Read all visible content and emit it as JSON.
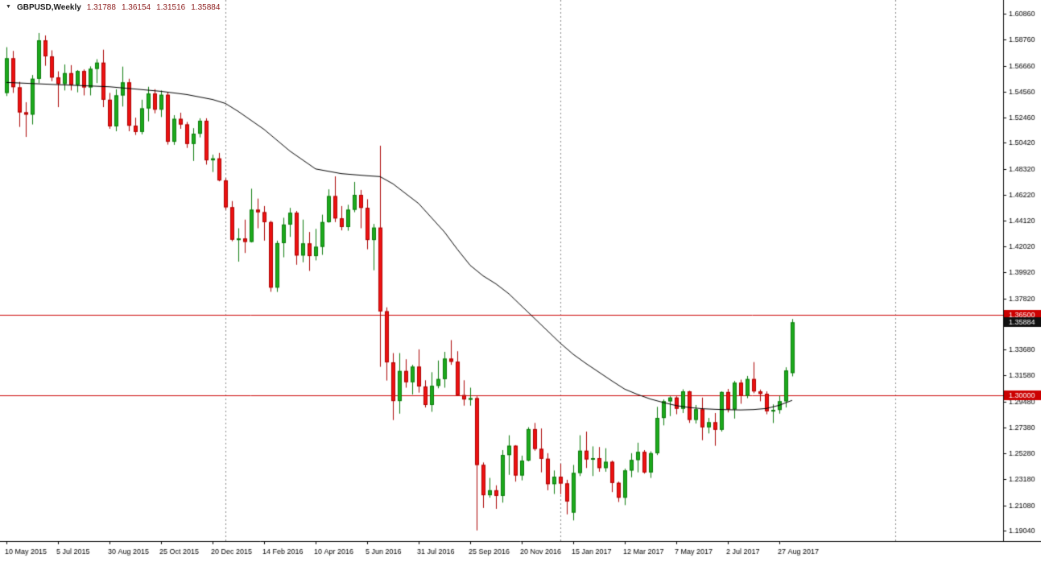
{
  "header": {
    "menu_arrow_icon": "▼",
    "symbol": "GBPUSD,Weekly",
    "open": "1.31788",
    "high": "1.36154",
    "low": "1.31516",
    "close": "1.35884"
  },
  "chart_data": {
    "type": "candlestick",
    "symbol": "GBPUSD",
    "timeframe": "Weekly",
    "ylim": [
      1.1819,
      1.6197
    ],
    "colors": {
      "bg": "#ffffff",
      "up_fill": "#1cab1c",
      "up_border": "#0a7a0a",
      "down_fill": "#ee1111",
      "down_border": "#aa0000",
      "ma": "#000000",
      "hline": "#cc0000",
      "separator": "#888888",
      "axis_text": "#000000",
      "tag_current_bg": "#111111",
      "tag_line_bg": "#cc0000",
      "tag_text": "#ffffff"
    },
    "y_ticks": [
      {
        "value": 1.6086,
        "label": "1.60860"
      },
      {
        "value": 1.5876,
        "label": "1.58760"
      },
      {
        "value": 1.5666,
        "label": "1.56660"
      },
      {
        "value": 1.5456,
        "label": "1.54560"
      },
      {
        "value": 1.5246,
        "label": "1.52460"
      },
      {
        "value": 1.5042,
        "label": "1.50420"
      },
      {
        "value": 1.4832,
        "label": "1.48320"
      },
      {
        "value": 1.4622,
        "label": "1.46220"
      },
      {
        "value": 1.4412,
        "label": "1.44120"
      },
      {
        "value": 1.4202,
        "label": "1.42020"
      },
      {
        "value": 1.3992,
        "label": "1.39920"
      },
      {
        "value": 1.3782,
        "label": "1.37820"
      },
      {
        "value": 1.3572,
        "label": "1.35720"
      },
      {
        "value": 1.3368,
        "label": "1.33680"
      },
      {
        "value": 1.3158,
        "label": "1.31580"
      },
      {
        "value": 1.2948,
        "label": "1.29480"
      },
      {
        "value": 1.2738,
        "label": "1.27380"
      },
      {
        "value": 1.2528,
        "label": "1.25280"
      },
      {
        "value": 1.2318,
        "label": "1.23180"
      },
      {
        "value": 1.2108,
        "label": "1.21080"
      },
      {
        "value": 1.1904,
        "label": "1.19040"
      }
    ],
    "x_ticks": [
      {
        "index": 0,
        "label": "10 May 2015"
      },
      {
        "index": 8,
        "label": "5 Jul 2015"
      },
      {
        "index": 16,
        "label": "30 Aug 2015"
      },
      {
        "index": 24,
        "label": "25 Oct 2015"
      },
      {
        "index": 32,
        "label": "20 Dec 2015"
      },
      {
        "index": 40,
        "label": "14 Feb 2016"
      },
      {
        "index": 48,
        "label": "10 Apr 2016"
      },
      {
        "index": 56,
        "label": "5 Jun 2016"
      },
      {
        "index": 64,
        "label": "31 Jul 2016"
      },
      {
        "index": 72,
        "label": "25 Sep 2016"
      },
      {
        "index": 80,
        "label": "20 Nov 2016"
      },
      {
        "index": 88,
        "label": "15 Jan 2017"
      },
      {
        "index": 96,
        "label": "12 Mar 2017"
      },
      {
        "index": 104,
        "label": "7 May 2017"
      },
      {
        "index": 112,
        "label": "2 Jul 2017"
      },
      {
        "index": 120,
        "label": "27 Aug 2017"
      }
    ],
    "separators_index": [
      34,
      86,
      138
    ],
    "hlines": [
      {
        "value": 1.365,
        "label": "1.36500"
      },
      {
        "value": 1.3,
        "label": "1.30000"
      }
    ],
    "price_tag": {
      "value": 1.35884,
      "label": "1.35884"
    },
    "candles": [
      [
        1.5445,
        1.5815,
        1.542,
        1.5725
      ],
      [
        1.5725,
        1.5785,
        1.5445,
        1.5492
      ],
      [
        1.549,
        1.5535,
        1.517,
        1.5288
      ],
      [
        1.5288,
        1.537,
        1.5089,
        1.527
      ],
      [
        1.527,
        1.559,
        1.519,
        1.556
      ],
      [
        1.556,
        1.593,
        1.5525,
        1.587
      ],
      [
        1.587,
        1.591,
        1.5665,
        1.5741
      ],
      [
        1.5741,
        1.579,
        1.554,
        1.557
      ],
      [
        1.557,
        1.562,
        1.533,
        1.5518
      ],
      [
        1.5518,
        1.5675,
        1.5465,
        1.5605
      ],
      [
        1.5605,
        1.567,
        1.5465,
        1.551
      ],
      [
        1.551,
        1.563,
        1.545,
        1.5622
      ],
      [
        1.5622,
        1.5635,
        1.5425,
        1.549
      ],
      [
        1.549,
        1.566,
        1.5425,
        1.564
      ],
      [
        1.564,
        1.5718,
        1.5525,
        1.569
      ],
      [
        1.569,
        1.5795,
        1.533,
        1.539
      ],
      [
        1.539,
        1.5445,
        1.5155,
        1.5175
      ],
      [
        1.5175,
        1.5475,
        1.5135,
        1.5425
      ],
      [
        1.5425,
        1.5658,
        1.5335,
        1.553
      ],
      [
        1.553,
        1.556,
        1.5135,
        1.518
      ],
      [
        1.518,
        1.5245,
        1.5105,
        1.513
      ],
      [
        1.513,
        1.539,
        1.511,
        1.532
      ],
      [
        1.532,
        1.5495,
        1.5215,
        1.544
      ],
      [
        1.544,
        1.5475,
        1.528,
        1.531
      ],
      [
        1.531,
        1.5465,
        1.525,
        1.543
      ],
      [
        1.543,
        1.545,
        1.5027,
        1.505
      ],
      [
        1.505,
        1.5265,
        1.5025,
        1.5235
      ],
      [
        1.5235,
        1.5285,
        1.5155,
        1.519
      ],
      [
        1.519,
        1.521,
        1.5,
        1.5033
      ],
      [
        1.5033,
        1.516,
        1.4895,
        1.5115
      ],
      [
        1.5115,
        1.524,
        1.5085,
        1.522
      ],
      [
        1.522,
        1.524,
        1.4865,
        1.49
      ],
      [
        1.49,
        1.4945,
        1.4805,
        1.4915
      ],
      [
        1.4915,
        1.496,
        1.473,
        1.4737
      ],
      [
        1.4737,
        1.4755,
        1.45,
        1.452
      ],
      [
        1.452,
        1.457,
        1.4245,
        1.4258
      ],
      [
        1.4258,
        1.435,
        1.408,
        1.4267
      ],
      [
        1.4267,
        1.442,
        1.415,
        1.424
      ],
      [
        1.424,
        1.467,
        1.4235,
        1.45
      ],
      [
        1.45,
        1.459,
        1.435,
        1.448
      ],
      [
        1.448,
        1.453,
        1.425,
        1.44
      ],
      [
        1.44,
        1.441,
        1.3836,
        1.387
      ],
      [
        1.387,
        1.425,
        1.3835,
        1.423
      ],
      [
        1.423,
        1.4435,
        1.4115,
        1.438
      ],
      [
        1.438,
        1.4515,
        1.428,
        1.4475
      ],
      [
        1.4475,
        1.449,
        1.4055,
        1.413
      ],
      [
        1.413,
        1.442,
        1.4075,
        1.4227
      ],
      [
        1.4227,
        1.432,
        1.4005,
        1.4125
      ],
      [
        1.4125,
        1.4345,
        1.409,
        1.42
      ],
      [
        1.42,
        1.446,
        1.4135,
        1.44
      ],
      [
        1.44,
        1.4665,
        1.4395,
        1.461
      ],
      [
        1.461,
        1.477,
        1.44,
        1.443
      ],
      [
        1.443,
        1.453,
        1.4333,
        1.436
      ],
      [
        1.436,
        1.454,
        1.433,
        1.45
      ],
      [
        1.45,
        1.4725,
        1.448,
        1.462
      ],
      [
        1.462,
        1.466,
        1.435,
        1.4515
      ],
      [
        1.4515,
        1.4585,
        1.418,
        1.4255
      ],
      [
        1.4255,
        1.4385,
        1.401,
        1.4355
      ],
      [
        1.4355,
        1.5018,
        1.3229,
        1.3678
      ],
      [
        1.3678,
        1.371,
        1.3118,
        1.3265
      ],
      [
        1.3265,
        1.334,
        1.2798,
        1.2952
      ],
      [
        1.2952,
        1.334,
        1.285,
        1.3195
      ],
      [
        1.3195,
        1.329,
        1.306,
        1.3105
      ],
      [
        1.3105,
        1.3245,
        1.3005,
        1.323
      ],
      [
        1.323,
        1.337,
        1.302,
        1.307
      ],
      [
        1.307,
        1.312,
        1.29,
        1.292
      ],
      [
        1.292,
        1.3185,
        1.2865,
        1.3075
      ],
      [
        1.3075,
        1.328,
        1.3055,
        1.313
      ],
      [
        1.313,
        1.335,
        1.306,
        1.3295
      ],
      [
        1.3295,
        1.3445,
        1.3245,
        1.327
      ],
      [
        1.327,
        1.3355,
        1.2995,
        1.3
      ],
      [
        1.3,
        1.312,
        1.2915,
        1.2965
      ],
      [
        1.2965,
        1.306,
        1.2915,
        1.2975
      ],
      [
        1.2975,
        1.299,
        1.1905,
        1.2435
      ],
      [
        1.2435,
        1.2455,
        1.2087,
        1.219
      ],
      [
        1.219,
        1.233,
        1.217,
        1.223
      ],
      [
        1.223,
        1.227,
        1.208,
        1.2185
      ],
      [
        1.2185,
        1.2555,
        1.213,
        1.2515
      ],
      [
        1.2515,
        1.2675,
        1.2355,
        1.259
      ],
      [
        1.259,
        1.2595,
        1.23,
        1.235
      ],
      [
        1.235,
        1.251,
        1.231,
        1.247
      ],
      [
        1.247,
        1.274,
        1.2465,
        1.2725
      ],
      [
        1.2725,
        1.2775,
        1.255,
        1.2565
      ],
      [
        1.2565,
        1.273,
        1.2375,
        1.2485
      ],
      [
        1.2485,
        1.253,
        1.223,
        1.228
      ],
      [
        1.228,
        1.239,
        1.22,
        1.234
      ],
      [
        1.234,
        1.2445,
        1.2198,
        1.2285
      ],
      [
        1.2285,
        1.2315,
        1.2035,
        1.214
      ],
      [
        1.205,
        1.2435,
        1.1986,
        1.237
      ],
      [
        1.237,
        1.2675,
        1.2345,
        1.255
      ],
      [
        1.255,
        1.2705,
        1.241,
        1.248
      ],
      [
        1.248,
        1.2585,
        1.2345,
        1.249
      ],
      [
        1.249,
        1.258,
        1.238,
        1.241
      ],
      [
        1.241,
        1.257,
        1.238,
        1.246
      ],
      [
        1.246,
        1.247,
        1.2215,
        1.229
      ],
      [
        1.229,
        1.23,
        1.2135,
        1.217
      ],
      [
        1.217,
        1.2405,
        1.211,
        1.239
      ],
      [
        1.239,
        1.253,
        1.2335,
        1.2475
      ],
      [
        1.2475,
        1.2615,
        1.2375,
        1.254
      ],
      [
        1.254,
        1.2555,
        1.2365,
        1.2375
      ],
      [
        1.2375,
        1.2545,
        1.233,
        1.253
      ],
      [
        1.253,
        1.2905,
        1.2515,
        1.2815
      ],
      [
        1.2815,
        1.2965,
        1.2755,
        1.295
      ],
      [
        1.295,
        1.299,
        1.283,
        1.298
      ],
      [
        1.298,
        1.299,
        1.2845,
        1.289
      ],
      [
        1.289,
        1.3047,
        1.2855,
        1.303
      ],
      [
        1.303,
        1.3035,
        1.2775,
        1.28
      ],
      [
        1.28,
        1.292,
        1.277,
        1.2885
      ],
      [
        1.2885,
        1.298,
        1.2635,
        1.274
      ],
      [
        1.274,
        1.2815,
        1.269,
        1.278
      ],
      [
        1.278,
        1.2855,
        1.259,
        1.272
      ],
      [
        1.272,
        1.303,
        1.2705,
        1.3025
      ],
      [
        1.3025,
        1.305,
        1.286,
        1.2885
      ],
      [
        1.2885,
        1.3115,
        1.281,
        1.31
      ],
      [
        1.31,
        1.3125,
        1.293,
        1.2995
      ],
      [
        1.2995,
        1.3155,
        1.2975,
        1.313
      ],
      [
        1.313,
        1.3267,
        1.3015,
        1.303
      ],
      [
        1.303,
        1.3045,
        1.295,
        1.301
      ],
      [
        1.301,
        1.303,
        1.2845,
        1.287
      ],
      [
        1.287,
        1.2925,
        1.2774,
        1.288
      ],
      [
        1.288,
        1.2995,
        1.285,
        1.295
      ],
      [
        1.295,
        1.3225,
        1.29,
        1.3199
      ],
      [
        1.31788,
        1.36154,
        1.31516,
        1.35884
      ]
    ],
    "ma_line": [
      [
        0,
        1.553
      ],
      [
        8,
        1.5512
      ],
      [
        16,
        1.5495
      ],
      [
        24,
        1.5458
      ],
      [
        28,
        1.5432
      ],
      [
        32,
        1.5392
      ],
      [
        34,
        1.536
      ],
      [
        36,
        1.5295
      ],
      [
        40,
        1.515
      ],
      [
        44,
        1.4975
      ],
      [
        48,
        1.483
      ],
      [
        52,
        1.4792
      ],
      [
        56,
        1.4775
      ],
      [
        58,
        1.4768
      ],
      [
        60,
        1.471
      ],
      [
        64,
        1.455
      ],
      [
        68,
        1.432
      ],
      [
        70,
        1.418
      ],
      [
        72,
        1.405
      ],
      [
        74,
        1.3965
      ],
      [
        76,
        1.39
      ],
      [
        78,
        1.382
      ],
      [
        80,
        1.372
      ],
      [
        82,
        1.362
      ],
      [
        84,
        1.352
      ],
      [
        86,
        1.342
      ],
      [
        88,
        1.333
      ],
      [
        90,
        1.3255
      ],
      [
        92,
        1.3185
      ],
      [
        94,
        1.3115
      ],
      [
        96,
        1.3048
      ],
      [
        98,
        1.3005
      ],
      [
        100,
        1.2968
      ],
      [
        102,
        1.294
      ],
      [
        104,
        1.2915
      ],
      [
        106,
        1.29
      ],
      [
        108,
        1.289
      ],
      [
        110,
        1.2885
      ],
      [
        112,
        1.2882
      ],
      [
        114,
        1.288
      ],
      [
        116,
        1.2883
      ],
      [
        118,
        1.2892
      ],
      [
        120,
        1.2918
      ],
      [
        122,
        1.2958
      ]
    ]
  }
}
